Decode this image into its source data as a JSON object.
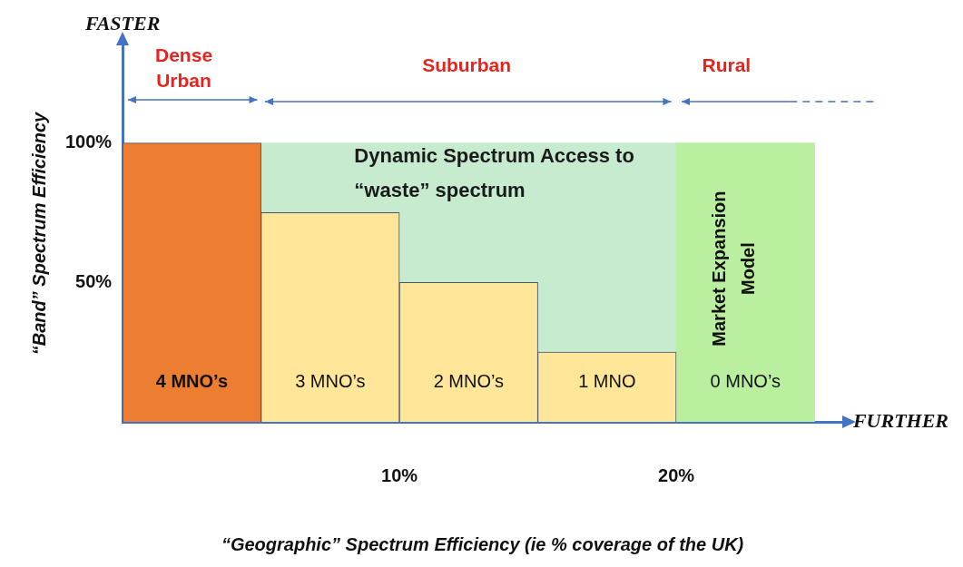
{
  "chart_data": {
    "type": "bar",
    "stacked": true,
    "x": [
      2.5,
      7.5,
      12.5,
      17.5,
      22.5
    ],
    "xlim": [
      0,
      26
    ],
    "ylim": [
      0,
      135
    ],
    "xticks": [
      {
        "value": 10,
        "label": "10%"
      },
      {
        "value": 20,
        "label": "20%"
      }
    ],
    "yticks": [
      {
        "value": 50,
        "label": "50%"
      },
      {
        "value": 100,
        "label": "100%"
      }
    ],
    "xlabel": "“Geographic” Spectrum Efficiency (ie % coverage of the UK)",
    "ylabel": "“Band” Spectrum Efficiency",
    "grid": false,
    "legend": false,
    "series": [
      {
        "values": [
          100,
          75,
          50,
          25,
          null
        ],
        "colors": [
          "#ed7d31",
          "#ffe699",
          "#ffe699",
          "#ffe699",
          "#ffe699"
        ]
      },
      {
        "values": [
          null,
          25,
          50,
          75,
          100
        ],
        "colors": [
          "#c6ebcf",
          "#c6ebcf",
          "#c6ebcf",
          "#c6ebcf",
          "#b9ef9f"
        ]
      }
    ],
    "annotations": [
      "FASTER",
      "FURTHER",
      "Dense Urban",
      "Suburban",
      "Rural",
      "Dynamic Spectrum Access to “waste” spectrum",
      "Market Expansion Model",
      "4 MNO’s",
      "3 MNO’s",
      "2 MNO’s",
      "1 MNO",
      "0 MNO’s"
    ]
  }
}
